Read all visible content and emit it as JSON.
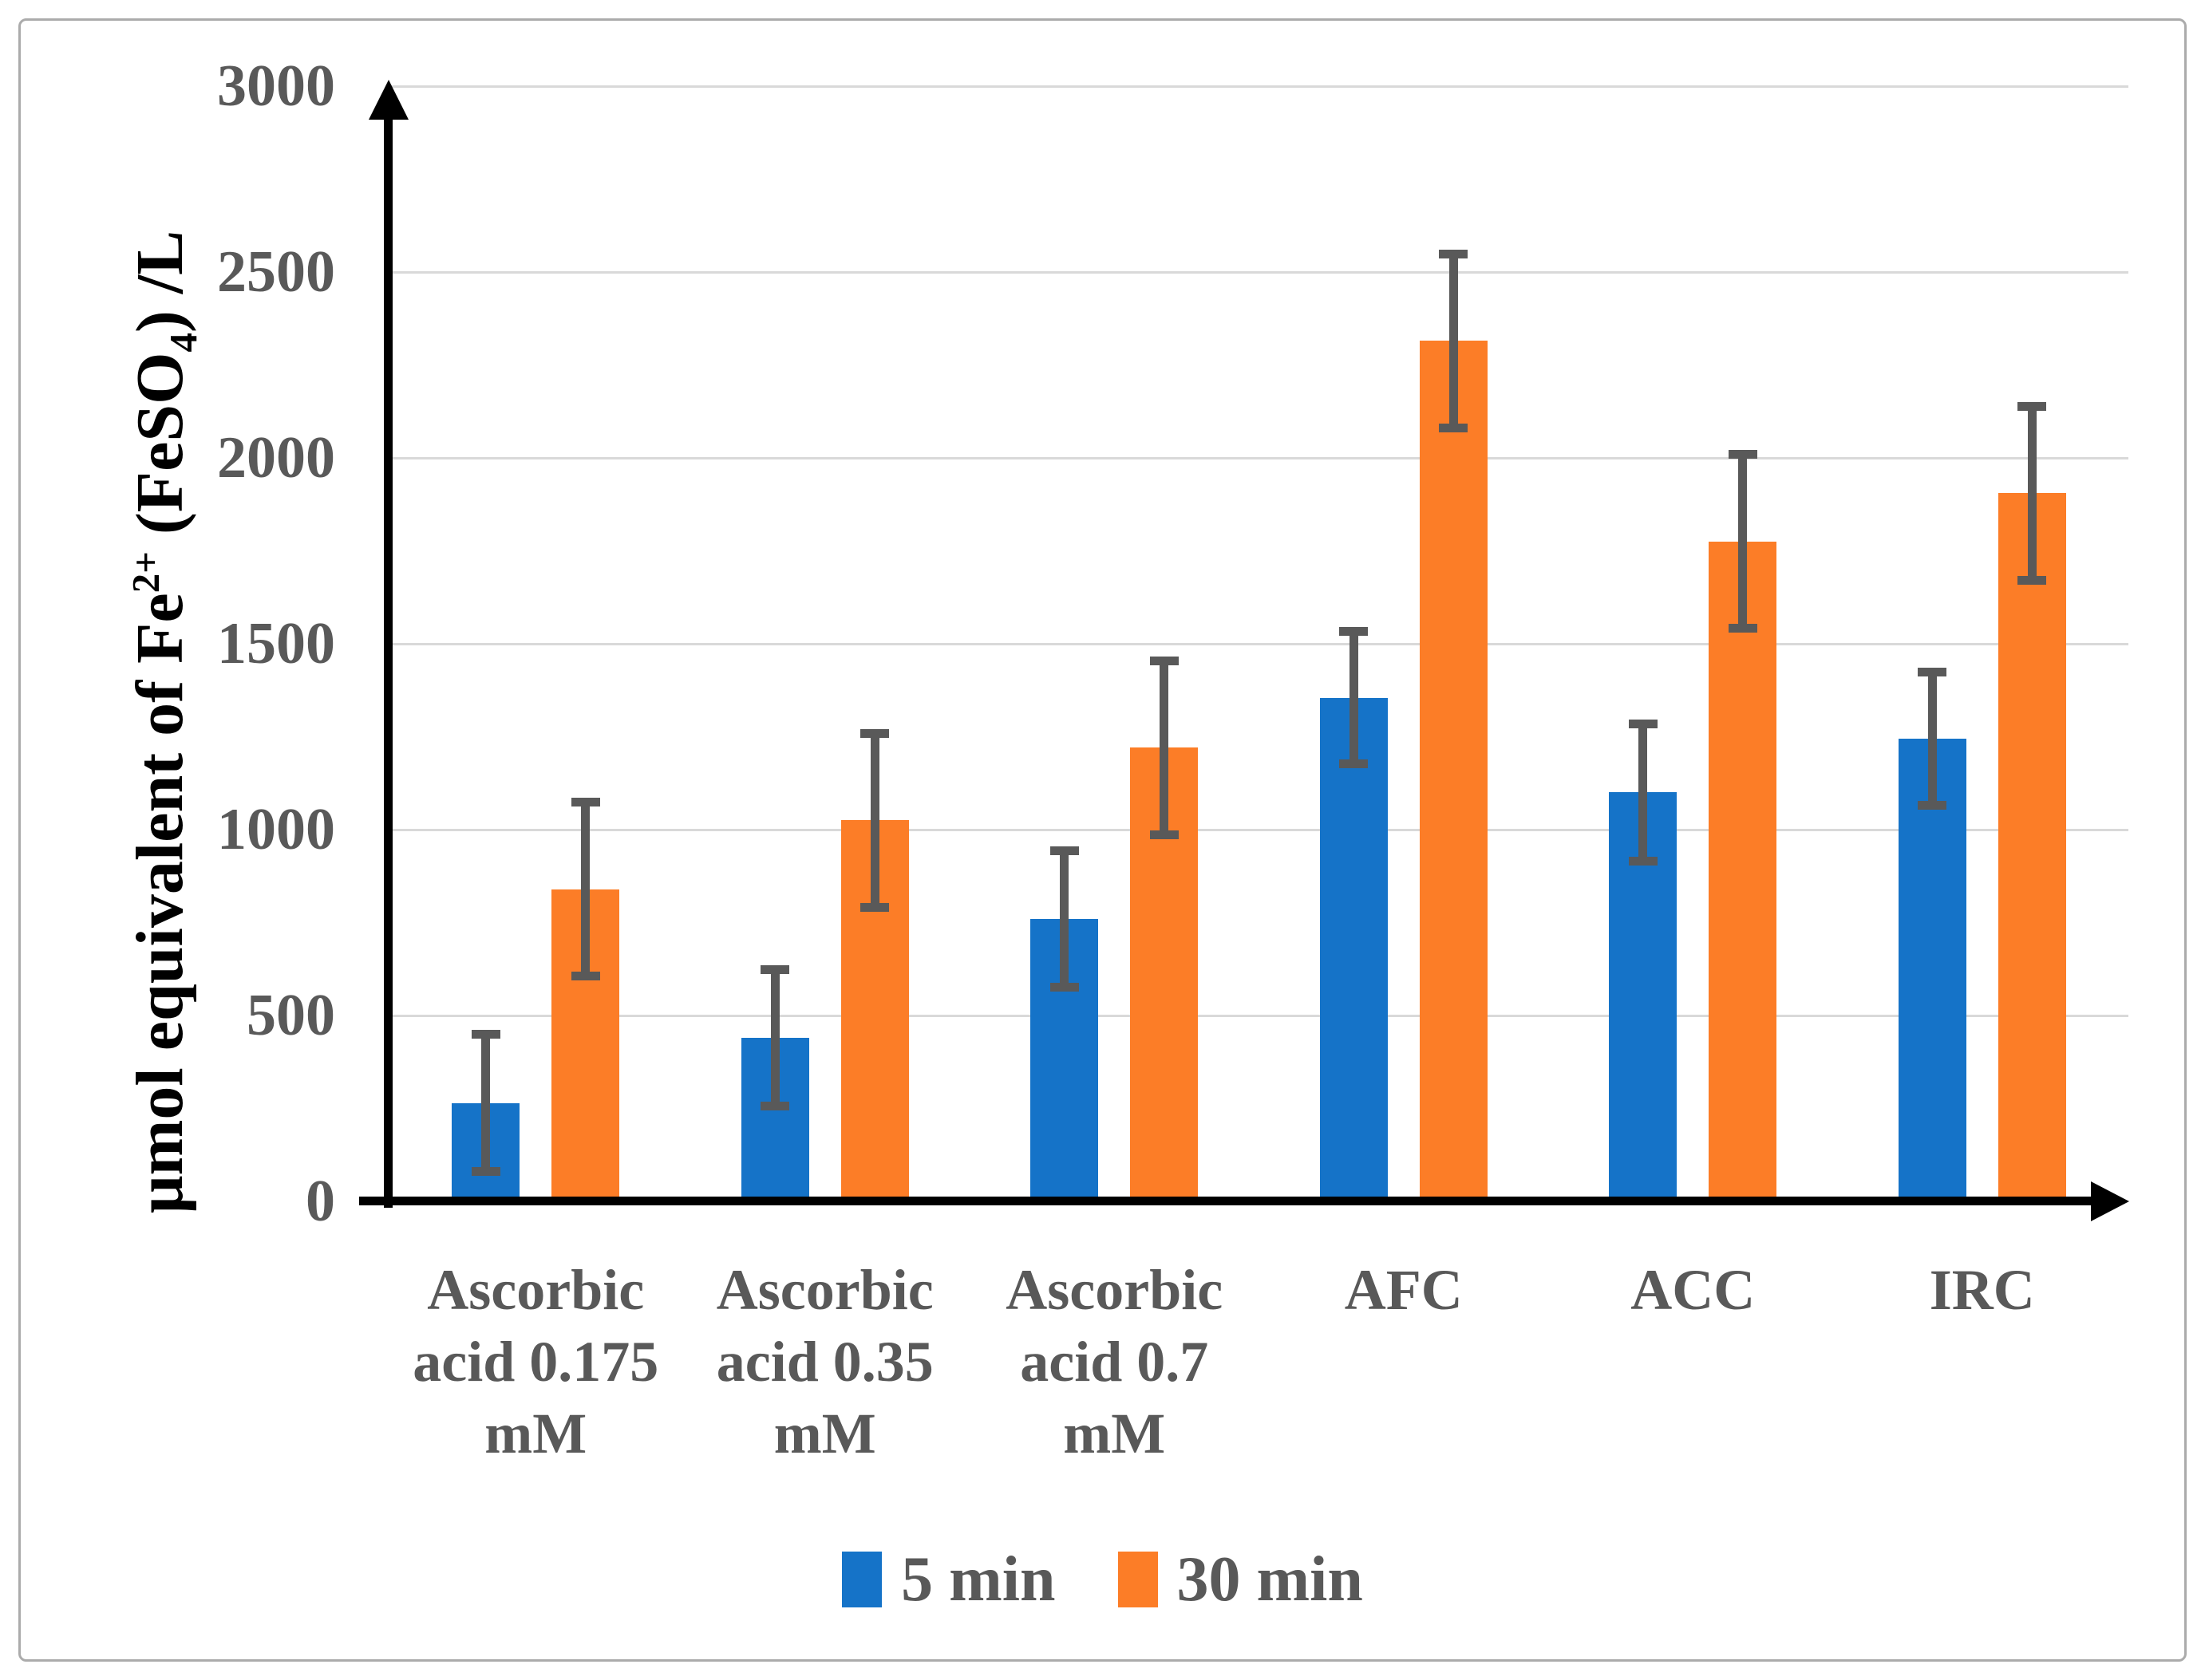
{
  "chart_data": {
    "type": "bar",
    "title": "",
    "y_title_parts": {
      "prefix": "μmol equivalent of Fe",
      "sup": "2+",
      "mid": " (FeSO",
      "sub": "4",
      "suffix": ") /L"
    },
    "ylabel": "μmol equivalent of Fe2+ (FeSO4) /L",
    "xlabel": "",
    "ylim": [
      0,
      3000
    ],
    "yticks": [
      0,
      500,
      1000,
      1500,
      2000,
      2500,
      3000
    ],
    "grid": true,
    "legend_position": "bottom",
    "categories": [
      "Ascorbic acid 0.175 mM",
      "Ascorbic acid 0.35 mM",
      "Ascorbic acid 0.7 mM",
      "AFC",
      "ACC",
      "IRC"
    ],
    "category_label_lines": [
      [
        "Ascorbic",
        "acid 0.175",
        "mM"
      ],
      [
        "Ascorbic",
        "acid 0.35",
        "mM"
      ],
      [
        "Ascorbic",
        "acid 0.7",
        "mM"
      ],
      [
        "AFC"
      ],
      [
        "ACC"
      ],
      [
        "IRC"
      ]
    ],
    "series": [
      {
        "name": "5 min",
        "color": "#1573C8",
        "values": [
          265,
          440,
          760,
          1355,
          1100,
          1245
        ],
        "errors": [
          185,
          185,
          185,
          180,
          185,
          180
        ]
      },
      {
        "name": "30 min",
        "color": "#FC7D27",
        "values": [
          840,
          1025,
          1220,
          2315,
          1775,
          1905
        ],
        "errors": [
          235,
          235,
          235,
          235,
          235,
          235
        ]
      }
    ],
    "error_bar_color": "#595959",
    "gridline_color": "#D9D9D9",
    "axis_color": "#000000",
    "text_color": "#595959"
  }
}
